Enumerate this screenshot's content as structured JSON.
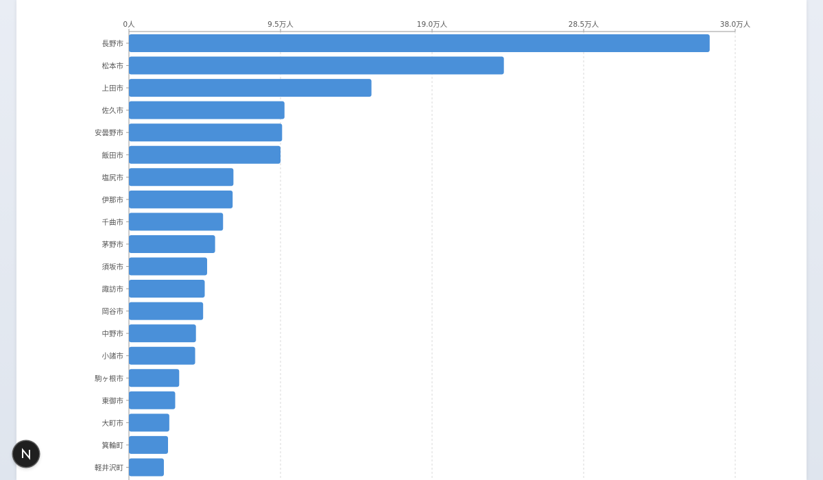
{
  "chart_data": {
    "type": "bar",
    "orientation": "horizontal",
    "categories": [
      "長野市",
      "松本市",
      "上田市",
      "佐久市",
      "安曇野市",
      "飯田市",
      "塩尻市",
      "伊那市",
      "千曲市",
      "茅野市",
      "須坂市",
      "諏訪市",
      "岡谷市",
      "中野市",
      "小諸市",
      "駒ヶ根市",
      "東御市",
      "大町市",
      "箕輪町",
      "軽井沢町"
    ],
    "values": [
      364000,
      235000,
      152000,
      97500,
      96000,
      95000,
      65500,
      65000,
      59000,
      54000,
      49000,
      47500,
      46500,
      42000,
      41500,
      31500,
      29000,
      25300,
      24500,
      21900
    ],
    "xlim": [
      0,
      380000
    ],
    "x_ticks": [
      0,
      95000,
      190000,
      285000,
      380000
    ],
    "x_tick_labels": [
      "0人",
      "9.5万人",
      "19.0万人",
      "28.5万人",
      "38.0万人"
    ],
    "x_axis_position": "top",
    "grid": true,
    "bar_color": "#4a90d9"
  },
  "badge": {
    "icon": "n-logo-icon",
    "label": "N"
  }
}
